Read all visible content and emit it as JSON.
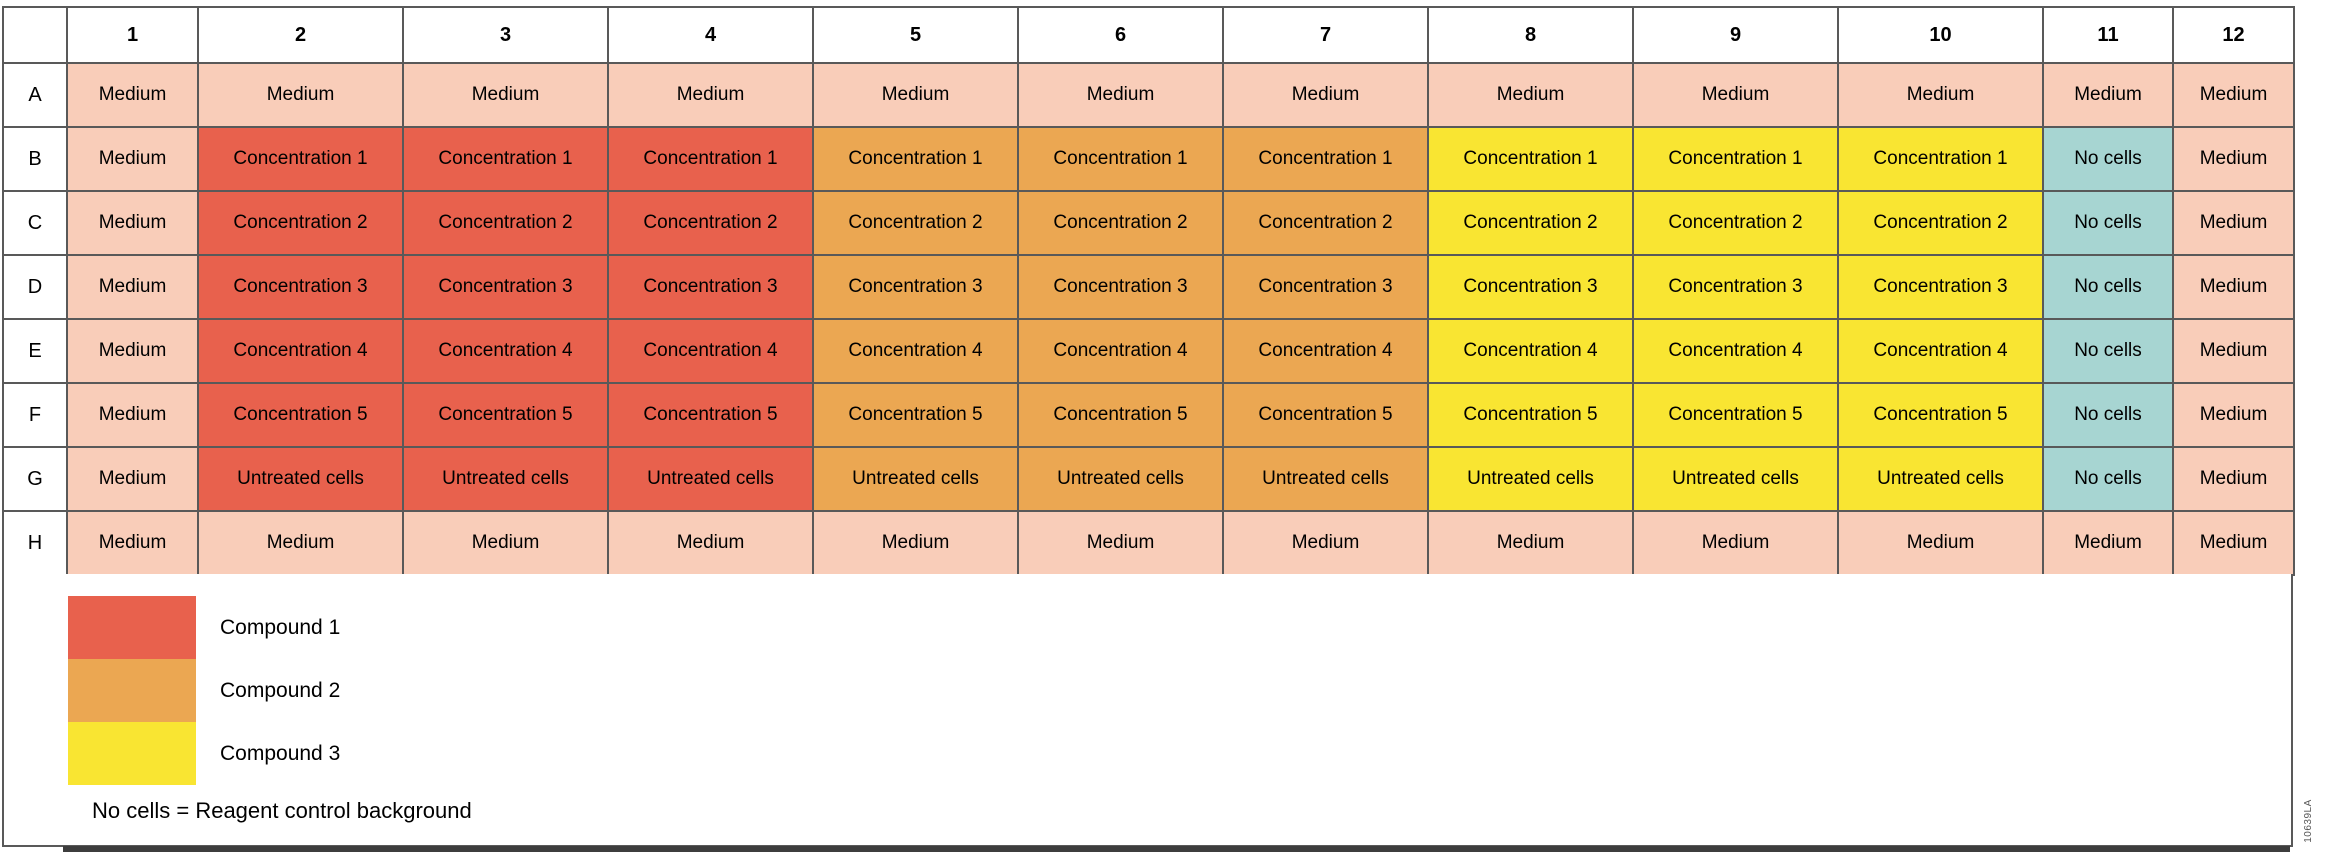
{
  "figure": {
    "colors": {
      "medium": "#F9CDB9",
      "compound1": "#E8614D",
      "compound2": "#EBA752",
      "compound3": "#F9E532",
      "no_cells": "#A7D5D2"
    },
    "column_headers": [
      "1",
      "2",
      "3",
      "4",
      "5",
      "6",
      "7",
      "8",
      "9",
      "10",
      "11",
      "12"
    ],
    "rows": [
      {
        "label": "A",
        "cells": [
          {
            "text": "Medium",
            "fill": "medium"
          },
          {
            "text": "Medium",
            "fill": "medium"
          },
          {
            "text": "Medium",
            "fill": "medium"
          },
          {
            "text": "Medium",
            "fill": "medium"
          },
          {
            "text": "Medium",
            "fill": "medium"
          },
          {
            "text": "Medium",
            "fill": "medium"
          },
          {
            "text": "Medium",
            "fill": "medium"
          },
          {
            "text": "Medium",
            "fill": "medium"
          },
          {
            "text": "Medium",
            "fill": "medium"
          },
          {
            "text": "Medium",
            "fill": "medium"
          },
          {
            "text": "Medium",
            "fill": "medium"
          },
          {
            "text": "Medium",
            "fill": "medium"
          }
        ]
      },
      {
        "label": "B",
        "cells": [
          {
            "text": "Medium",
            "fill": "medium"
          },
          {
            "text": "Concentration 1",
            "fill": "compound1"
          },
          {
            "text": "Concentration 1",
            "fill": "compound1"
          },
          {
            "text": "Concentration 1",
            "fill": "compound1"
          },
          {
            "text": "Concentration 1",
            "fill": "compound2"
          },
          {
            "text": "Concentration 1",
            "fill": "compound2"
          },
          {
            "text": "Concentration 1",
            "fill": "compound2"
          },
          {
            "text": "Concentration 1",
            "fill": "compound3"
          },
          {
            "text": "Concentration 1",
            "fill": "compound3"
          },
          {
            "text": "Concentration 1",
            "fill": "compound3"
          },
          {
            "text": "No cells",
            "fill": "no_cells"
          },
          {
            "text": "Medium",
            "fill": "medium"
          }
        ]
      },
      {
        "label": "C",
        "cells": [
          {
            "text": "Medium",
            "fill": "medium"
          },
          {
            "text": "Concentration 2",
            "fill": "compound1"
          },
          {
            "text": "Concentration 2",
            "fill": "compound1"
          },
          {
            "text": "Concentration 2",
            "fill": "compound1"
          },
          {
            "text": "Concentration 2",
            "fill": "compound2"
          },
          {
            "text": "Concentration 2",
            "fill": "compound2"
          },
          {
            "text": "Concentration 2",
            "fill": "compound2"
          },
          {
            "text": "Concentration 2",
            "fill": "compound3"
          },
          {
            "text": "Concentration 2",
            "fill": "compound3"
          },
          {
            "text": "Concentration 2",
            "fill": "compound3"
          },
          {
            "text": "No cells",
            "fill": "no_cells"
          },
          {
            "text": "Medium",
            "fill": "medium"
          }
        ]
      },
      {
        "label": "D",
        "cells": [
          {
            "text": "Medium",
            "fill": "medium"
          },
          {
            "text": "Concentration 3",
            "fill": "compound1"
          },
          {
            "text": "Concentration 3",
            "fill": "compound1"
          },
          {
            "text": "Concentration 3",
            "fill": "compound1"
          },
          {
            "text": "Concentration 3",
            "fill": "compound2"
          },
          {
            "text": "Concentration 3",
            "fill": "compound2"
          },
          {
            "text": "Concentration 3",
            "fill": "compound2"
          },
          {
            "text": "Concentration 3",
            "fill": "compound3"
          },
          {
            "text": "Concentration 3",
            "fill": "compound3"
          },
          {
            "text": "Concentration 3",
            "fill": "compound3"
          },
          {
            "text": "No cells",
            "fill": "no_cells"
          },
          {
            "text": "Medium",
            "fill": "medium"
          }
        ]
      },
      {
        "label": "E",
        "cells": [
          {
            "text": "Medium",
            "fill": "medium"
          },
          {
            "text": "Concentration 4",
            "fill": "compound1"
          },
          {
            "text": "Concentration 4",
            "fill": "compound1"
          },
          {
            "text": "Concentration 4",
            "fill": "compound1"
          },
          {
            "text": "Concentration 4",
            "fill": "compound2"
          },
          {
            "text": "Concentration 4",
            "fill": "compound2"
          },
          {
            "text": "Concentration 4",
            "fill": "compound2"
          },
          {
            "text": "Concentration 4",
            "fill": "compound3"
          },
          {
            "text": "Concentration 4",
            "fill": "compound3"
          },
          {
            "text": "Concentration 4",
            "fill": "compound3"
          },
          {
            "text": "No cells",
            "fill": "no_cells"
          },
          {
            "text": "Medium",
            "fill": "medium"
          }
        ]
      },
      {
        "label": "F",
        "cells": [
          {
            "text": "Medium",
            "fill": "medium"
          },
          {
            "text": "Concentration 5",
            "fill": "compound1"
          },
          {
            "text": "Concentration 5",
            "fill": "compound1"
          },
          {
            "text": "Concentration 5",
            "fill": "compound1"
          },
          {
            "text": "Concentration 5",
            "fill": "compound2"
          },
          {
            "text": "Concentration 5",
            "fill": "compound2"
          },
          {
            "text": "Concentration 5",
            "fill": "compound2"
          },
          {
            "text": "Concentration 5",
            "fill": "compound3"
          },
          {
            "text": "Concentration 5",
            "fill": "compound3"
          },
          {
            "text": "Concentration 5",
            "fill": "compound3"
          },
          {
            "text": "No cells",
            "fill": "no_cells"
          },
          {
            "text": "Medium",
            "fill": "medium"
          }
        ]
      },
      {
        "label": "G",
        "cells": [
          {
            "text": "Medium",
            "fill": "medium"
          },
          {
            "text": "Untreated cells",
            "fill": "compound1"
          },
          {
            "text": "Untreated cells",
            "fill": "compound1"
          },
          {
            "text": "Untreated cells",
            "fill": "compound1"
          },
          {
            "text": "Untreated cells",
            "fill": "compound2"
          },
          {
            "text": "Untreated cells",
            "fill": "compound2"
          },
          {
            "text": "Untreated cells",
            "fill": "compound2"
          },
          {
            "text": "Untreated cells",
            "fill": "compound3"
          },
          {
            "text": "Untreated cells",
            "fill": "compound3"
          },
          {
            "text": "Untreated cells",
            "fill": "compound3"
          },
          {
            "text": "No cells",
            "fill": "no_cells"
          },
          {
            "text": "Medium",
            "fill": "medium"
          }
        ]
      },
      {
        "label": "H",
        "cells": [
          {
            "text": "Medium",
            "fill": "medium"
          },
          {
            "text": "Medium",
            "fill": "medium"
          },
          {
            "text": "Medium",
            "fill": "medium"
          },
          {
            "text": "Medium",
            "fill": "medium"
          },
          {
            "text": "Medium",
            "fill": "medium"
          },
          {
            "text": "Medium",
            "fill": "medium"
          },
          {
            "text": "Medium",
            "fill": "medium"
          },
          {
            "text": "Medium",
            "fill": "medium"
          },
          {
            "text": "Medium",
            "fill": "medium"
          },
          {
            "text": "Medium",
            "fill": "medium"
          },
          {
            "text": "Medium",
            "fill": "medium"
          },
          {
            "text": "Medium",
            "fill": "medium"
          }
        ]
      }
    ],
    "legend": [
      {
        "label": "Compound 1",
        "fill": "compound1"
      },
      {
        "label": "Compound 2",
        "fill": "compound2"
      },
      {
        "label": "Compound 3",
        "fill": "compound3"
      }
    ],
    "note": "No cells = Reagent control background",
    "figure_id": "10639LA"
  }
}
